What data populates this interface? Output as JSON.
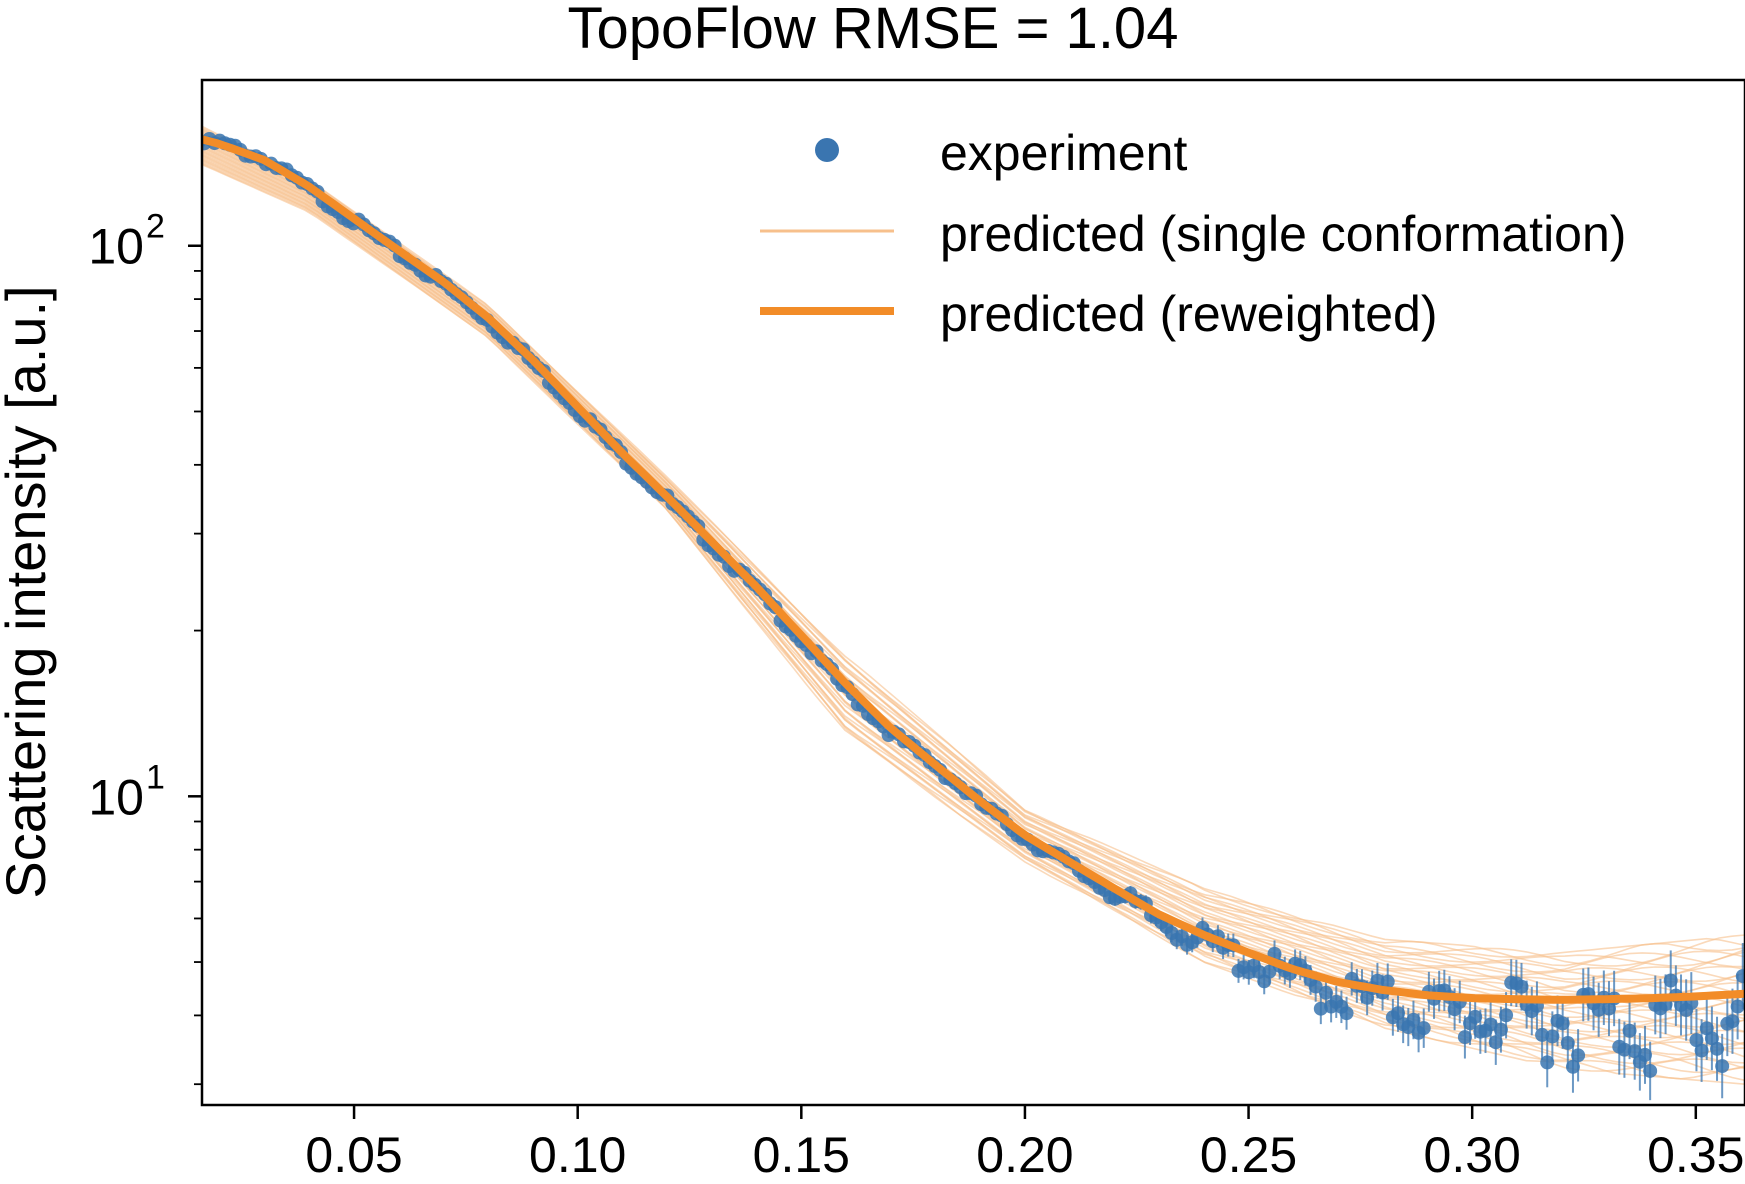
{
  "chart_data": {
    "type": "line",
    "title": "TopoFlow RMSE = 1.04",
    "xlabel": "",
    "ylabel": "Scattering intensity [a.u.]",
    "yscale": "log",
    "xlim": [
      0.016,
      0.361
    ],
    "ylim": [
      2.75,
      200
    ],
    "grid": false,
    "legend_position": "top-right",
    "x_ticks": [
      {
        "value": 0.05,
        "label": "0.05"
      },
      {
        "value": 0.1,
        "label": "0.10"
      },
      {
        "value": 0.15,
        "label": "0.15"
      },
      {
        "value": 0.2,
        "label": "0.20"
      },
      {
        "value": 0.25,
        "label": "0.25"
      },
      {
        "value": 0.3,
        "label": "0.30"
      },
      {
        "value": 0.35,
        "label": "0.35"
      }
    ],
    "y_ticks": [
      {
        "value": 10,
        "base": "10",
        "exponent": "1"
      },
      {
        "value": 100,
        "base": "10",
        "exponent": "2"
      }
    ],
    "colors": {
      "experiment": "#3a75b0",
      "reweighted": "#f28c28",
      "single": "#f7c08c",
      "axes": "#000000"
    },
    "series": [
      {
        "name": "experiment",
        "kind": "scatter-errorbar",
        "x": [
          0.02,
          0.03,
          0.04,
          0.05,
          0.06,
          0.07,
          0.08,
          0.09,
          0.1,
          0.11,
          0.12,
          0.13,
          0.14,
          0.15,
          0.16,
          0.17,
          0.18,
          0.19,
          0.2,
          0.21,
          0.22,
          0.23,
          0.24,
          0.25,
          0.26,
          0.27,
          0.28,
          0.29,
          0.3,
          0.31,
          0.32,
          0.33,
          0.34,
          0.35,
          0.36
        ],
        "y": [
          155,
          145,
          128,
          112,
          98,
          86,
          74,
          62,
          51,
          42,
          35,
          29,
          24,
          19.5,
          15.8,
          13.2,
          11.5,
          9.8,
          8.5,
          7.6,
          6.8,
          6.1,
          5.6,
          5.2,
          4.85,
          4.6,
          4.45,
          4.35,
          4.3,
          4.28,
          4.27,
          4.28,
          4.3,
          4.33,
          4.35
        ]
      },
      {
        "name": "predicted (single conformation)",
        "kind": "line-ensemble",
        "x": [
          0.016,
          0.04,
          0.08,
          0.12,
          0.16,
          0.2,
          0.24,
          0.28,
          0.32,
          0.361
        ],
        "y_min": [
          140,
          115,
          68,
          33,
          13,
          7.6,
          5.0,
          3.8,
          3.2,
          3.0
        ],
        "y_max": [
          165,
          132,
          78,
          38,
          18,
          9.5,
          6.8,
          5.5,
          5.2,
          5.6
        ]
      },
      {
        "name": "predicted (reweighted)",
        "kind": "line",
        "x": [
          0.016,
          0.02,
          0.03,
          0.04,
          0.05,
          0.06,
          0.07,
          0.08,
          0.09,
          0.1,
          0.11,
          0.12,
          0.13,
          0.14,
          0.15,
          0.16,
          0.17,
          0.18,
          0.19,
          0.2,
          0.21,
          0.22,
          0.23,
          0.24,
          0.25,
          0.26,
          0.27,
          0.28,
          0.29,
          0.3,
          0.31,
          0.32,
          0.33,
          0.34,
          0.35,
          0.361
        ],
        "y": [
          156,
          153,
          143,
          128,
          112,
          98,
          86,
          74,
          62,
          51,
          42,
          35,
          29,
          24,
          19.6,
          16,
          13.3,
          11.4,
          9.8,
          8.5,
          7.6,
          6.8,
          6.1,
          5.6,
          5.2,
          4.85,
          4.6,
          4.45,
          4.35,
          4.3,
          4.28,
          4.27,
          4.28,
          4.3,
          4.33,
          4.38
        ]
      }
    ]
  }
}
